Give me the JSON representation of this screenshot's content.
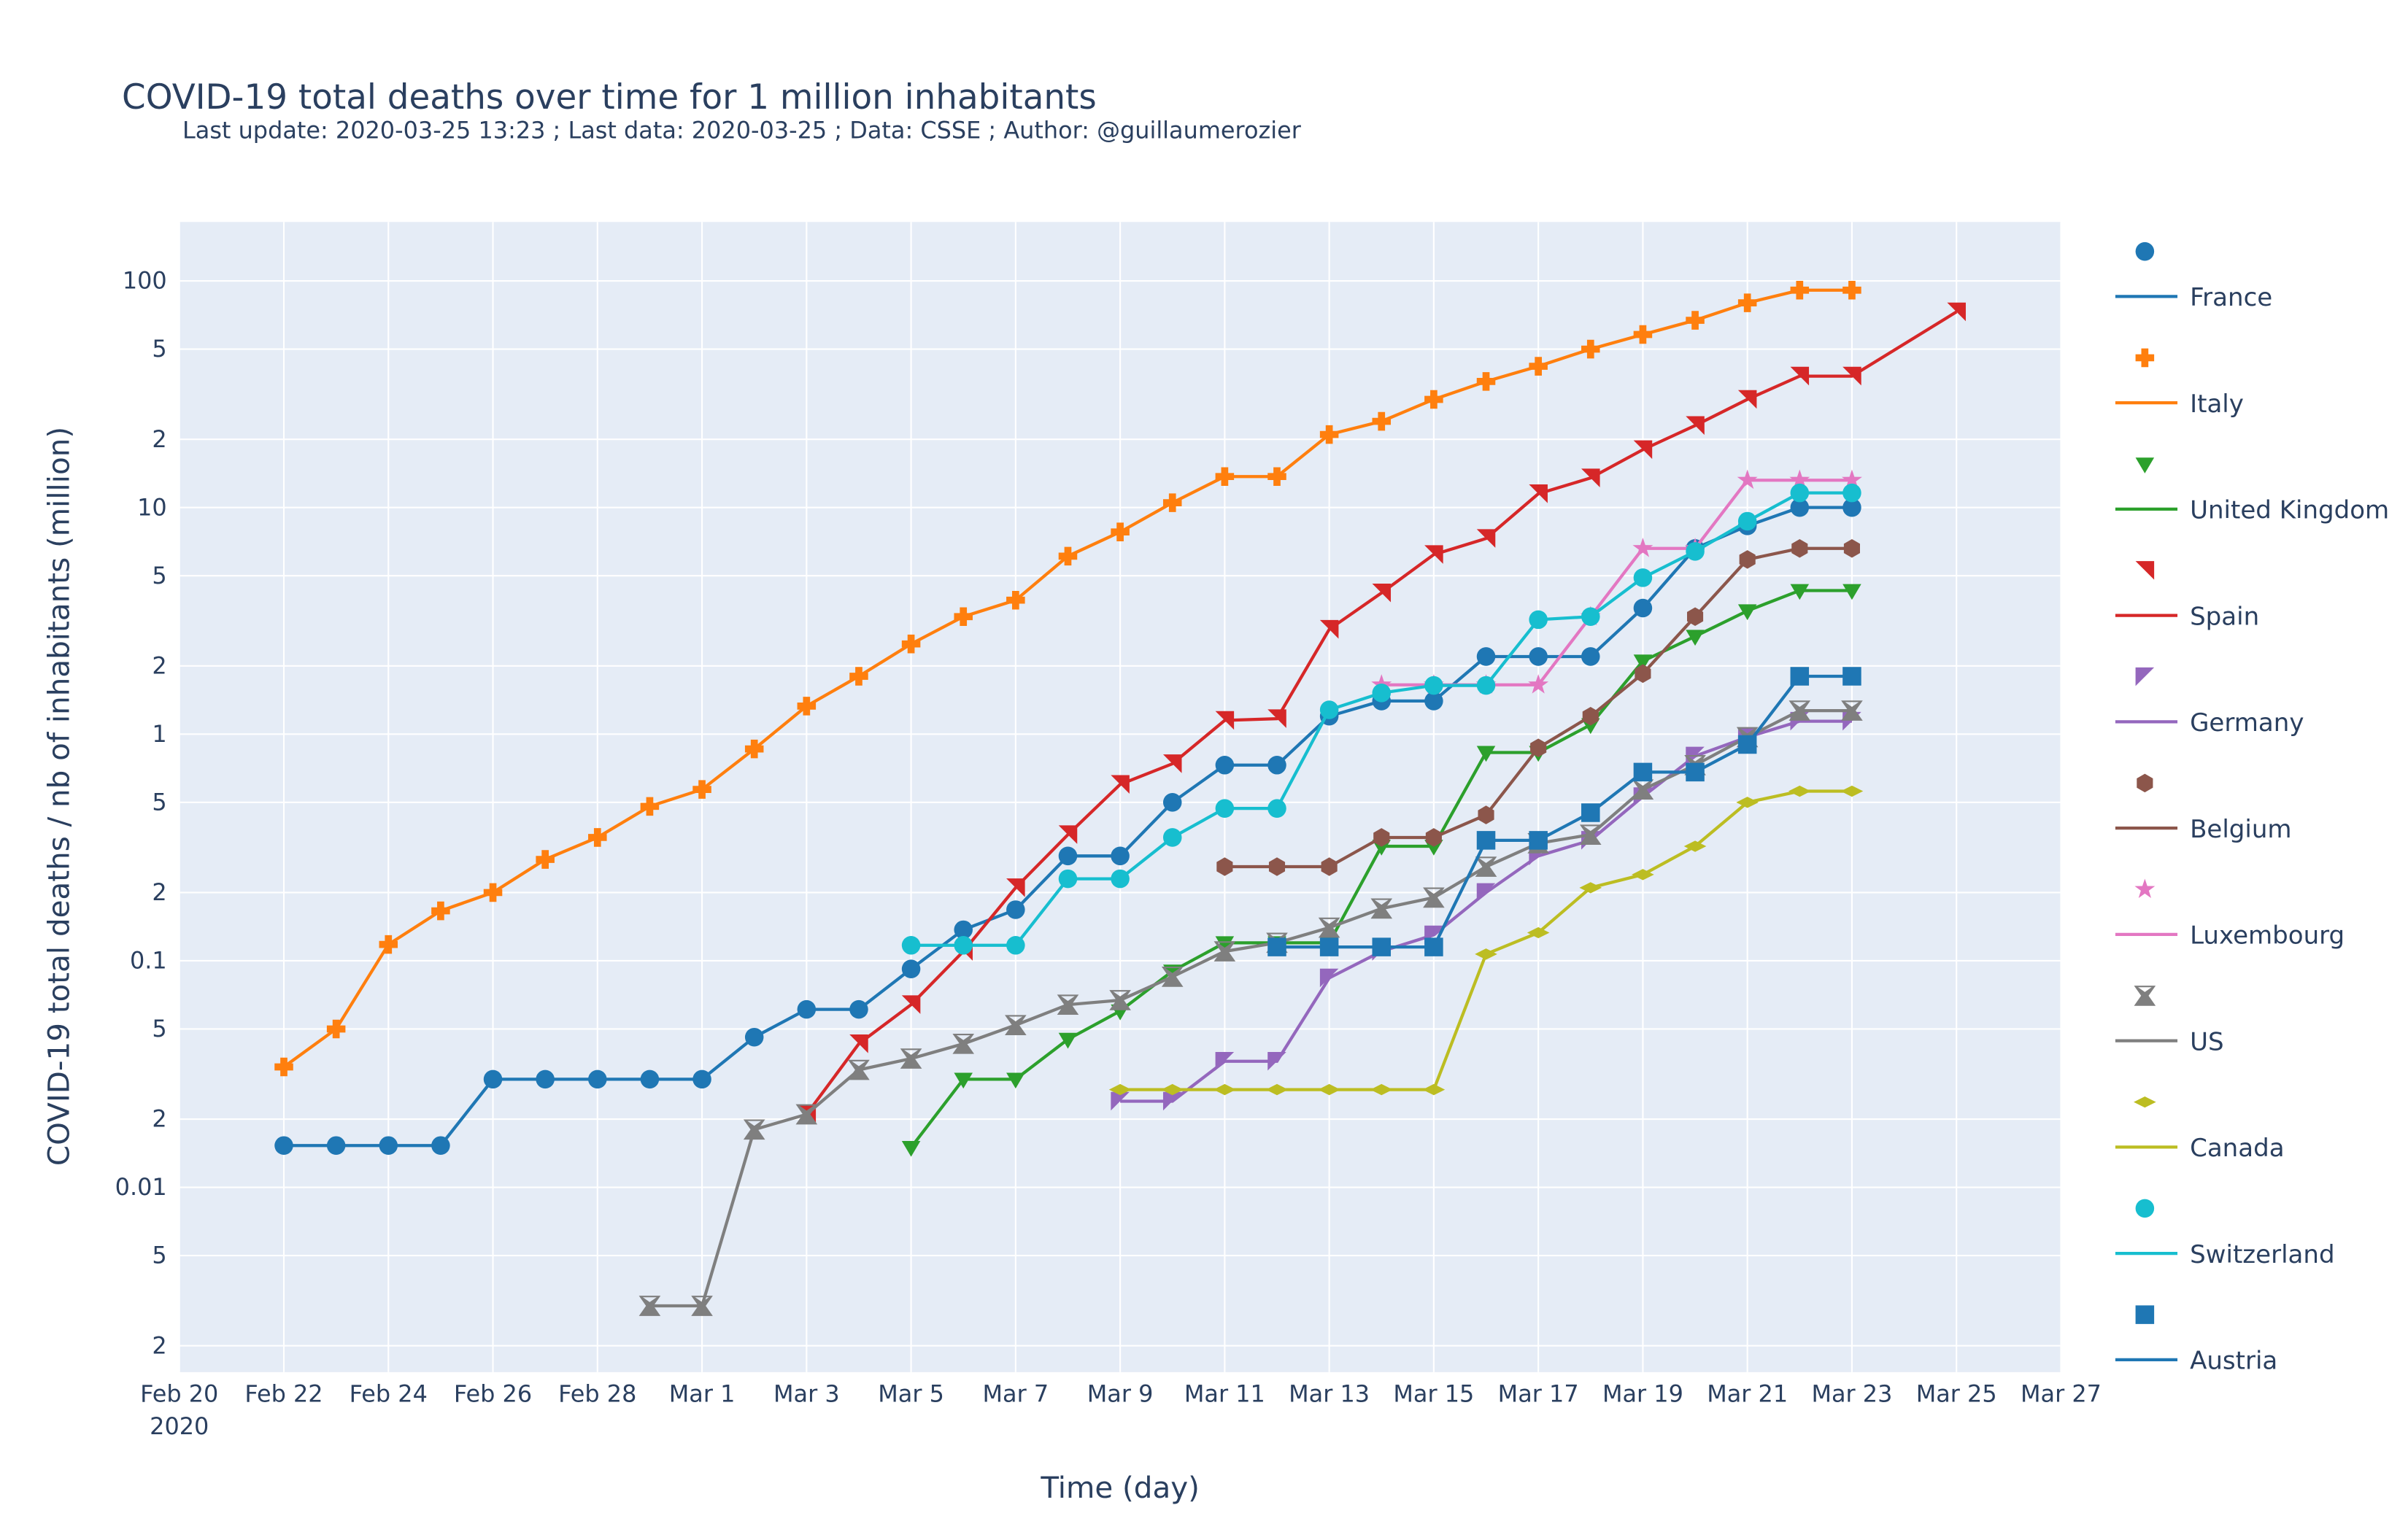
{
  "chart_data": {
    "type": "line",
    "title": "COVID-19 total deaths over time for 1 million inhabitants",
    "subtitle": "Last update: 2020-03-25 13:23 ; Last data: 2020-03-25 ; Data: CSSE ; Author: @guillaumerozier",
    "x_label": "Time (day)",
    "y_label": "COVID-19 total deaths / nb of inhabitants (million)",
    "log_y": true,
    "grid": true,
    "x": [
      "2020-02-22",
      "2020-02-23",
      "2020-02-24",
      "2020-02-25",
      "2020-02-26",
      "2020-02-27",
      "2020-02-28",
      "2020-02-29",
      "2020-03-01",
      "2020-03-02",
      "2020-03-03",
      "2020-03-04",
      "2020-03-05",
      "2020-03-06",
      "2020-03-07",
      "2020-03-08",
      "2020-03-09",
      "2020-03-10",
      "2020-03-11",
      "2020-03-12",
      "2020-03-13",
      "2020-03-14",
      "2020-03-15",
      "2020-03-16",
      "2020-03-17",
      "2020-03-18",
      "2020-03-19",
      "2020-03-20",
      "2020-03-21",
      "2020-03-22",
      "2020-03-23",
      "2020-03-25"
    ],
    "xlim": [
      "2020-02-20",
      "2020-03-27"
    ],
    "xticks": [
      {
        "value": "2020-02-20",
        "label": "Feb 20\n2020"
      },
      {
        "value": "2020-02-22",
        "label": "Feb 22"
      },
      {
        "value": "2020-02-24",
        "label": "Feb 24"
      },
      {
        "value": "2020-02-26",
        "label": "Feb 26"
      },
      {
        "value": "2020-02-28",
        "label": "Feb 28"
      },
      {
        "value": "2020-03-01",
        "label": "Mar 1"
      },
      {
        "value": "2020-03-03",
        "label": "Mar 3"
      },
      {
        "value": "2020-03-05",
        "label": "Mar 5"
      },
      {
        "value": "2020-03-07",
        "label": "Mar 7"
      },
      {
        "value": "2020-03-09",
        "label": "Mar 9"
      },
      {
        "value": "2020-03-11",
        "label": "Mar 11"
      },
      {
        "value": "2020-03-13",
        "label": "Mar 13"
      },
      {
        "value": "2020-03-15",
        "label": "Mar 15"
      },
      {
        "value": "2020-03-17",
        "label": "Mar 17"
      },
      {
        "value": "2020-03-19",
        "label": "Mar 19"
      },
      {
        "value": "2020-03-21",
        "label": "Mar 21"
      },
      {
        "value": "2020-03-23",
        "label": "Mar 23"
      },
      {
        "value": "2020-03-25",
        "label": "Mar 25"
      },
      {
        "value": "2020-03-27",
        "label": "Mar 27"
      }
    ],
    "ylim": [
      0.00153,
      182
    ],
    "yticks": [
      {
        "value": 0.002,
        "label": "2"
      },
      {
        "value": 0.005,
        "label": "5"
      },
      0.01,
      {
        "value": 0.02,
        "label": "2"
      },
      {
        "value": 0.05,
        "label": "5"
      },
      0.1,
      {
        "value": 0.2,
        "label": "2"
      },
      {
        "value": 0.5,
        "label": "5"
      },
      1,
      {
        "value": 2,
        "label": "2"
      },
      {
        "value": 5,
        "label": "5"
      },
      10,
      {
        "value": 20,
        "label": "2"
      },
      {
        "value": 50,
        "label": "5"
      },
      100
    ],
    "series": [
      {
        "name": "France",
        "color": "#1f77b4",
        "symbol": "circle",
        "values": [
          0.0153,
          0.0153,
          0.0153,
          0.0153,
          0.03,
          0.03,
          0.03,
          0.03,
          0.03,
          0.046,
          0.061,
          0.061,
          0.092,
          0.137,
          0.168,
          0.29,
          0.29,
          0.5,
          0.73,
          0.73,
          1.2,
          1.4,
          1.4,
          2.2,
          2.2,
          2.2,
          3.6,
          6.6,
          8.3,
          10,
          10,
          null
        ]
      },
      {
        "name": "Italy",
        "color": "#ff7f0e",
        "symbol": "cross",
        "values": [
          0.034,
          0.05,
          0.118,
          0.166,
          0.2,
          0.28,
          0.35,
          0.48,
          0.57,
          0.86,
          1.33,
          1.8,
          2.5,
          3.3,
          3.9,
          6.1,
          7.8,
          10.5,
          13.7,
          13.7,
          21,
          24,
          30,
          36,
          42,
          50,
          58,
          67,
          80,
          91,
          91,
          null
        ]
      },
      {
        "name": "United Kingdom",
        "color": "#2ca02c",
        "symbol": "triangle-down",
        "values": [
          null,
          null,
          null,
          null,
          null,
          null,
          null,
          null,
          null,
          null,
          null,
          null,
          0.015,
          0.03,
          0.03,
          0.045,
          0.06,
          0.09,
          0.12,
          0.12,
          0.12,
          0.32,
          0.32,
          0.83,
          0.83,
          1.1,
          2.1,
          2.7,
          3.5,
          4.3,
          4.3,
          null
        ]
      },
      {
        "name": "Spain",
        "color": "#d62728",
        "symbol": "triangle-ne",
        "values": [
          null,
          null,
          null,
          null,
          null,
          null,
          null,
          null,
          null,
          null,
          0.021,
          0.043,
          0.064,
          0.11,
          0.21,
          0.36,
          0.6,
          0.74,
          1.15,
          1.17,
          2.9,
          4.2,
          6.2,
          7.3,
          11.5,
          13.5,
          18,
          23,
          30,
          38,
          38,
          73
        ]
      },
      {
        "name": "Germany",
        "color": "#9467bd",
        "symbol": "triangle-nw",
        "values": [
          null,
          null,
          null,
          null,
          null,
          null,
          null,
          null,
          null,
          null,
          null,
          null,
          null,
          null,
          null,
          null,
          0.024,
          0.024,
          0.036,
          0.036,
          0.084,
          0.11,
          0.13,
          0.2,
          0.29,
          0.34,
          0.53,
          0.8,
          0.97,
          1.14,
          1.14,
          null
        ]
      },
      {
        "name": "Belgium",
        "color": "#8c564b",
        "symbol": "hexagon",
        "values": [
          null,
          null,
          null,
          null,
          null,
          null,
          null,
          null,
          null,
          null,
          null,
          null,
          null,
          null,
          null,
          null,
          null,
          null,
          0.26,
          0.26,
          0.26,
          0.35,
          0.35,
          0.44,
          0.87,
          1.2,
          1.85,
          3.3,
          5.9,
          6.6,
          6.6,
          null
        ]
      },
      {
        "name": "Luxembourg",
        "color": "#e377c2",
        "symbol": "star",
        "values": [
          null,
          null,
          null,
          null,
          null,
          null,
          null,
          null,
          null,
          null,
          null,
          null,
          null,
          null,
          null,
          null,
          null,
          null,
          null,
          null,
          null,
          1.65,
          1.65,
          1.65,
          1.65,
          3.3,
          6.6,
          6.6,
          13.2,
          13.2,
          13.2,
          null
        ]
      },
      {
        "name": "US",
        "color": "#7f7f7f",
        "symbol": "hourglass",
        "values": [
          null,
          null,
          null,
          null,
          null,
          null,
          null,
          0.003,
          0.003,
          0.018,
          0.021,
          0.033,
          0.037,
          0.043,
          0.052,
          0.064,
          0.067,
          0.085,
          0.11,
          0.12,
          0.14,
          0.17,
          0.19,
          0.26,
          0.33,
          0.36,
          0.57,
          0.73,
          0.97,
          1.27,
          1.27,
          null
        ]
      },
      {
        "name": "Canada",
        "color": "#bcbd22",
        "symbol": "diamond-wide",
        "values": [
          null,
          null,
          null,
          null,
          null,
          null,
          null,
          null,
          null,
          null,
          null,
          null,
          null,
          null,
          null,
          null,
          0.027,
          0.027,
          0.027,
          0.027,
          0.027,
          0.027,
          0.027,
          0.107,
          0.133,
          0.21,
          0.24,
          0.32,
          0.5,
          0.56,
          0.56,
          null
        ]
      },
      {
        "name": "Switzerland",
        "color": "#17becf",
        "symbol": "circle",
        "values": [
          null,
          null,
          null,
          null,
          null,
          null,
          null,
          null,
          null,
          null,
          null,
          null,
          0.117,
          0.117,
          0.117,
          0.23,
          0.23,
          0.35,
          0.47,
          0.47,
          1.28,
          1.52,
          1.64,
          1.64,
          3.2,
          3.3,
          4.9,
          6.4,
          8.7,
          11.6,
          11.6,
          null
        ]
      },
      {
        "name": "Austria",
        "color": "#1f77b4",
        "symbol": "square",
        "values": [
          null,
          null,
          null,
          null,
          null,
          null,
          null,
          null,
          null,
          null,
          null,
          null,
          null,
          null,
          null,
          null,
          null,
          null,
          null,
          0.115,
          0.115,
          0.115,
          0.115,
          0.34,
          0.34,
          0.45,
          0.68,
          0.68,
          0.9,
          1.8,
          1.8,
          null
        ]
      }
    ]
  }
}
